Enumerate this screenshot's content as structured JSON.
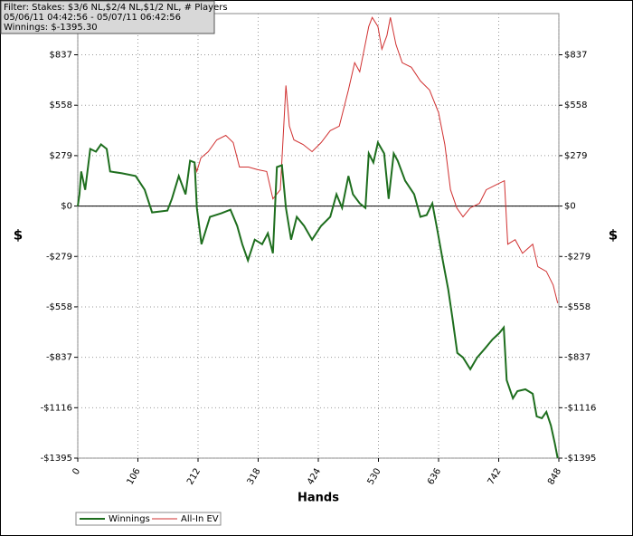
{
  "chart_data": {
    "type": "line",
    "annotations": [
      "Filter: Stakes: $3/6 NL,$2/4 NL,$1/2 NL, # Players",
      "05/06/11 04:42:56 - 05/07/11 06:42:56",
      "Winnings: $-1395.30"
    ],
    "xlabel": "Hands",
    "ylabel": "$",
    "xlim": [
      0,
      848
    ],
    "xticks": [
      0,
      106,
      212,
      318,
      424,
      530,
      636,
      742,
      848
    ],
    "ylim": [
      -1395,
      1065
    ],
    "yticks": [
      {
        "value": 837,
        "label": "$837"
      },
      {
        "value": 558,
        "label": "$558"
      },
      {
        "value": 279,
        "label": "$279"
      },
      {
        "value": 0,
        "label": "$0"
      },
      {
        "value": -279,
        "label": "-$279"
      },
      {
        "value": -558,
        "label": "-$558"
      },
      {
        "value": -837,
        "label": "-$837"
      },
      {
        "value": -1116,
        "label": "-$1116"
      },
      {
        "value": -1395,
        "label": "-$1395"
      }
    ],
    "grid": true,
    "series": [
      {
        "name": "Winnings",
        "color": "#1e6e1e",
        "x": [
          0,
          3,
          6,
          13,
          22,
          32,
          41,
          51,
          57,
          78,
          102,
          118,
          131,
          158,
          166,
          178,
          190,
          198,
          206,
          210,
          218,
          233,
          253,
          269,
          281,
          290,
          300,
          312,
          325,
          335,
          344,
          351,
          360,
          367,
          376,
          386,
          399,
          413,
          429,
          445,
          456,
          466,
          477,
          485,
          497,
          507,
          513,
          521,
          529,
          540,
          548,
          557,
          564,
          577,
          593,
          604,
          615,
          625,
          634,
          644,
          653,
          660,
          669,
          679,
          692,
          704,
          718,
          731,
          743,
          751,
          756,
          767,
          775,
          789,
          802,
          809,
          818,
          826,
          834,
          841,
          846
        ],
        "values": [
          0,
          65,
          191,
          90,
          316,
          301,
          341,
          316,
          191,
          181,
          166,
          90,
          -35,
          -25,
          40,
          166,
          65,
          251,
          241,
          -10,
          -211,
          -60,
          -40,
          -20,
          -110,
          -211,
          -301,
          -186,
          -211,
          -151,
          -261,
          216,
          226,
          -10,
          -186,
          -60,
          -110,
          -186,
          -110,
          -60,
          65,
          -10,
          166,
          65,
          15,
          -10,
          291,
          241,
          351,
          291,
          40,
          291,
          251,
          140,
          65,
          -60,
          -50,
          15,
          -135,
          -311,
          -462,
          -612,
          -813,
          -838,
          -903,
          -838,
          -788,
          -738,
          -703,
          -672,
          -963,
          -1064,
          -1024,
          -1014,
          -1039,
          -1164,
          -1174,
          -1139,
          -1214,
          -1315,
          -1395
        ]
      },
      {
        "name": "All-In EV",
        "color": "#d03030",
        "x": [
          0,
          3,
          6,
          13,
          22,
          32,
          41,
          51,
          57,
          78,
          102,
          118,
          131,
          158,
          166,
          178,
          190,
          198,
          206,
          210,
          217,
          230,
          245,
          261,
          274,
          285,
          301,
          317,
          333,
          344,
          357,
          367,
          373,
          381,
          397,
          413,
          429,
          445,
          461,
          477,
          488,
          497,
          505,
          513,
          519,
          529,
          536,
          545,
          551,
          561,
          572,
          588,
          604,
          620,
          636,
          647,
          657,
          668,
          679,
          692,
          708,
          720,
          736,
          752,
          758,
          771,
          784,
          802,
          811,
          826,
          838,
          846
        ],
        "values": [
          0,
          65,
          191,
          90,
          316,
          301,
          341,
          316,
          191,
          181,
          166,
          90,
          -35,
          -25,
          40,
          166,
          65,
          251,
          241,
          191,
          266,
          301,
          366,
          391,
          351,
          216,
          216,
          201,
          191,
          40,
          90,
          667,
          442,
          366,
          341,
          301,
          351,
          417,
          442,
          642,
          793,
          743,
          868,
          994,
          1044,
          994,
          868,
          944,
          1044,
          893,
          793,
          768,
          692,
          642,
          517,
          341,
          90,
          -10,
          -60,
          -10,
          15,
          90,
          115,
          140,
          -211,
          -186,
          -261,
          -211,
          -336,
          -362,
          -437,
          -537
        ]
      }
    ]
  }
}
